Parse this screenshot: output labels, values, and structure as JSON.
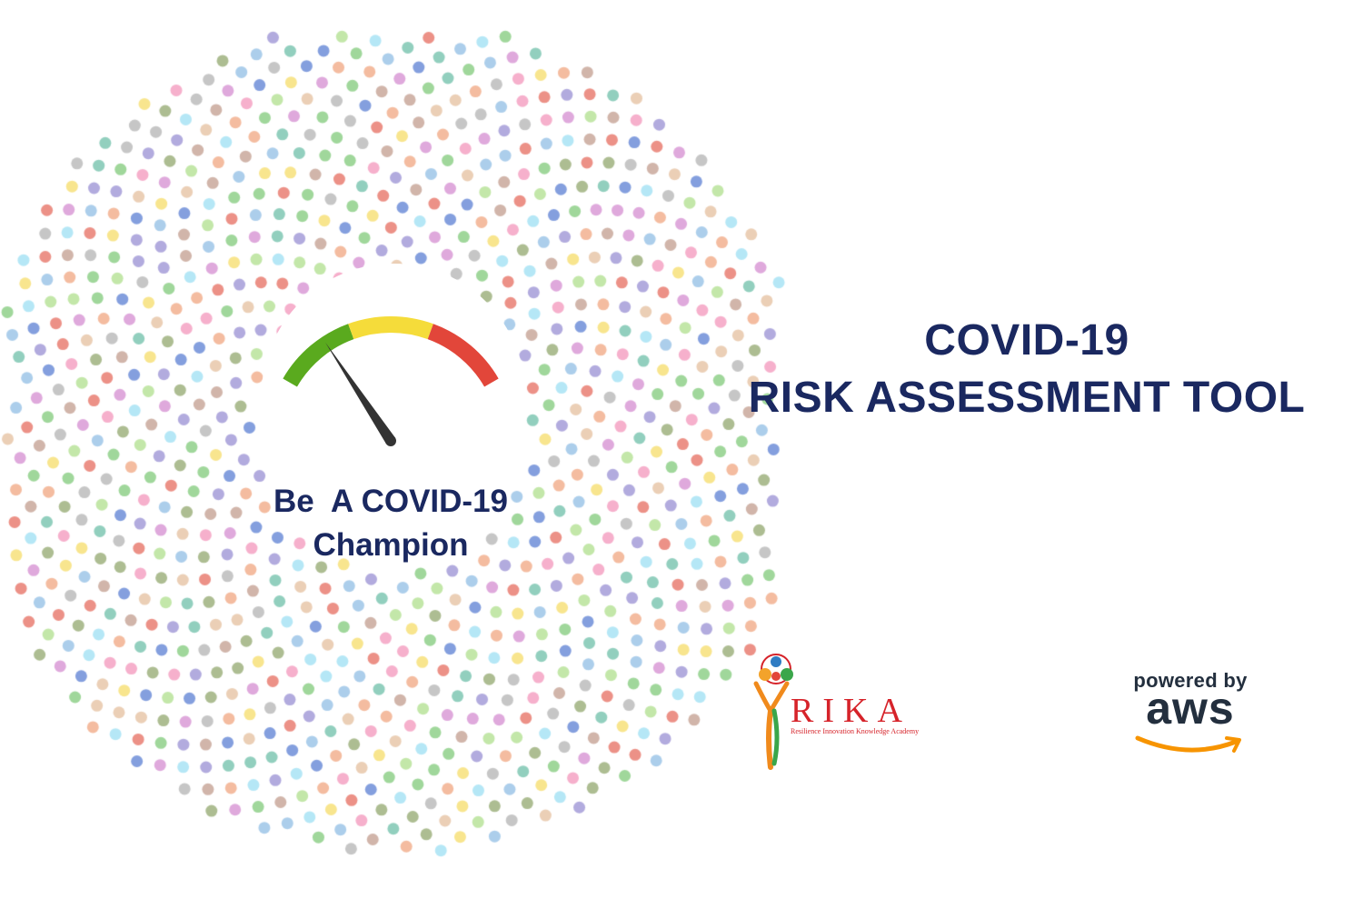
{
  "title": {
    "line1": "COVID-19",
    "line2": "RISK ASSESSMENT TOOL",
    "color": "#1a2860"
  },
  "gauge": {
    "segments": [
      {
        "name": "low",
        "color": "#5aaa1e"
      },
      {
        "name": "medium",
        "color": "#f5dc3a"
      },
      {
        "name": "high",
        "color": "#e2463a"
      }
    ],
    "needle_level": 0.22
  },
  "slogan": {
    "line1": "Be  A COVID-19",
    "line2": "Champion"
  },
  "logos": {
    "rika": {
      "word": "RIKA",
      "tagline": "Resilience Innovation Knowledge Academy",
      "color": "#d6232a"
    },
    "aws": {
      "powered_by": "powered by",
      "word": "aws",
      "smile_color": "#f79400"
    }
  },
  "dot_palette": [
    "#e97e72",
    "#8fd08a",
    "#f2b08f",
    "#9ec6e8",
    "#c9a89b",
    "#b9e39a",
    "#f4a2c3",
    "#a49cd8",
    "#f7e07a",
    "#7fc7b3",
    "#6f8ed8",
    "#d99ad6",
    "#bcbcbc",
    "#e7c7a9",
    "#a8e3f5",
    "#9fb27f"
  ]
}
